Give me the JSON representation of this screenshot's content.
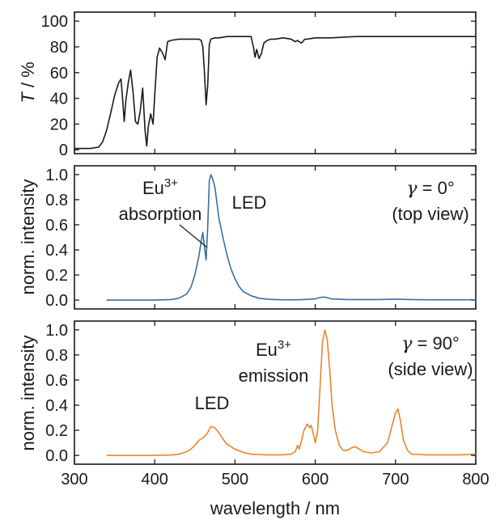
{
  "figure": {
    "xlabel": "wavelength / nm",
    "x_ticks": [
      300,
      400,
      500,
      600,
      700,
      800
    ],
    "xlim": [
      300,
      800
    ]
  },
  "chart_data": [
    {
      "type": "line",
      "ylabel_italic": "T",
      "ylabel_rest": " / %",
      "ylim": [
        -3,
        107
      ],
      "y_ticks": [
        0,
        20,
        40,
        60,
        80,
        100
      ],
      "xlim": [
        300,
        800
      ],
      "color": "#1a1a1a",
      "series": [
        {
          "x": [
            300,
            320,
            330,
            335,
            340,
            345,
            350,
            355,
            358,
            360,
            362,
            364,
            367,
            370,
            373,
            376,
            379,
            382,
            385,
            388,
            390,
            392,
            395,
            398,
            400,
            403,
            406,
            410,
            413,
            416,
            420,
            430,
            440,
            450,
            455,
            458,
            460,
            462,
            464,
            466,
            468,
            470,
            475,
            480,
            490,
            500,
            510,
            520,
            523,
            525,
            527,
            530,
            533,
            536,
            540,
            545,
            550,
            560,
            570,
            575,
            578,
            580,
            583,
            587,
            590,
            600,
            620,
            650,
            700,
            750,
            800
          ],
          "y": [
            1,
            1,
            2,
            6,
            15,
            28,
            42,
            52,
            55,
            40,
            22,
            38,
            52,
            62,
            45,
            22,
            20,
            30,
            48,
            15,
            3,
            18,
            28,
            20,
            42,
            72,
            79,
            75,
            70,
            84,
            85,
            86,
            86,
            86,
            86,
            85,
            80,
            60,
            35,
            50,
            82,
            86,
            87,
            87,
            88,
            88,
            88,
            88,
            80,
            72,
            78,
            71,
            75,
            83,
            85,
            86,
            86,
            87,
            86,
            84,
            85,
            84,
            83,
            86,
            86,
            87,
            87,
            88,
            88,
            88,
            88
          ]
        }
      ]
    },
    {
      "type": "line",
      "ylabel": "norm. intensity",
      "ylim": [
        -0.07,
        1.07
      ],
      "y_ticks": [
        0.0,
        0.2,
        0.4,
        0.6,
        0.8,
        1.0
      ],
      "y_tick_labels": [
        "0.0",
        "0.2",
        "0.4",
        "0.6",
        "0.8",
        "1.0"
      ],
      "xlim": [
        300,
        800
      ],
      "color": "#3b6f9a",
      "series": [
        {
          "x": [
            340,
            400,
            420,
            430,
            440,
            445,
            450,
            455,
            458,
            460,
            462,
            464,
            466,
            468,
            470,
            472,
            475,
            478,
            480,
            485,
            490,
            495,
            500,
            505,
            510,
            520,
            530,
            540,
            550,
            560,
            580,
            600,
            605,
            610,
            615,
            620,
            640,
            660,
            680,
            700,
            720,
            740,
            760,
            780,
            800
          ],
          "y": [
            0,
            0,
            0.005,
            0.015,
            0.05,
            0.1,
            0.2,
            0.35,
            0.47,
            0.54,
            0.42,
            0.32,
            0.58,
            0.95,
            1.0,
            0.97,
            0.9,
            0.75,
            0.65,
            0.5,
            0.36,
            0.25,
            0.17,
            0.11,
            0.07,
            0.035,
            0.015,
            0.008,
            0.005,
            0.003,
            0.003,
            0.01,
            0.02,
            0.025,
            0.02,
            0.01,
            0.005,
            0.005,
            0.005,
            0.008,
            0.005,
            0.003,
            0.003,
            0.003,
            0.003
          ]
        }
      ],
      "annotations": [
        {
          "line1_base": "Eu",
          "line1_sup": "3+",
          "line2": "absorption"
        },
        {
          "text": "LED"
        },
        {
          "greek": "γ",
          "rest": " = 0°",
          "line2": "(top view)"
        }
      ]
    },
    {
      "type": "line",
      "ylabel": "norm. intensity",
      "ylim": [
        -0.07,
        1.07
      ],
      "y_ticks": [
        0.0,
        0.2,
        0.4,
        0.6,
        0.8,
        1.0
      ],
      "y_tick_labels": [
        "0.0",
        "0.2",
        "0.4",
        "0.6",
        "0.8",
        "1.0"
      ],
      "xlim": [
        300,
        800
      ],
      "color": "#e8862b",
      "series": [
        {
          "x": [
            340,
            400,
            420,
            430,
            440,
            445,
            450,
            455,
            460,
            465,
            470,
            475,
            480,
            485,
            490,
            500,
            510,
            520,
            540,
            560,
            570,
            575,
            578,
            580,
            583,
            586,
            590,
            593,
            595,
            598,
            600,
            603,
            606,
            609,
            612,
            615,
            618,
            621,
            625,
            630,
            635,
            640,
            645,
            650,
            655,
            660,
            670,
            680,
            690,
            695,
            700,
            703,
            706,
            710,
            715,
            720,
            740,
            760,
            780,
            800
          ],
          "y": [
            0,
            0,
            0.003,
            0.01,
            0.03,
            0.05,
            0.08,
            0.12,
            0.14,
            0.17,
            0.23,
            0.22,
            0.18,
            0.13,
            0.09,
            0.05,
            0.025,
            0.01,
            0.005,
            0.005,
            0.01,
            0.03,
            0.08,
            0.05,
            0.12,
            0.2,
            0.25,
            0.22,
            0.24,
            0.16,
            0.1,
            0.2,
            0.55,
            0.9,
            1.0,
            0.92,
            0.68,
            0.4,
            0.2,
            0.08,
            0.04,
            0.04,
            0.06,
            0.07,
            0.05,
            0.03,
            0.02,
            0.03,
            0.1,
            0.22,
            0.34,
            0.37,
            0.28,
            0.12,
            0.04,
            0.01,
            0.005,
            0.005,
            0.005,
            0.01
          ]
        }
      ],
      "annotations": [
        {
          "line1_base": "Eu",
          "line1_sup": "3+",
          "line2": "emission"
        },
        {
          "text": "LED"
        },
        {
          "greek": "γ",
          "rest": " = 90°",
          "line2": "(side view)"
        }
      ]
    }
  ]
}
